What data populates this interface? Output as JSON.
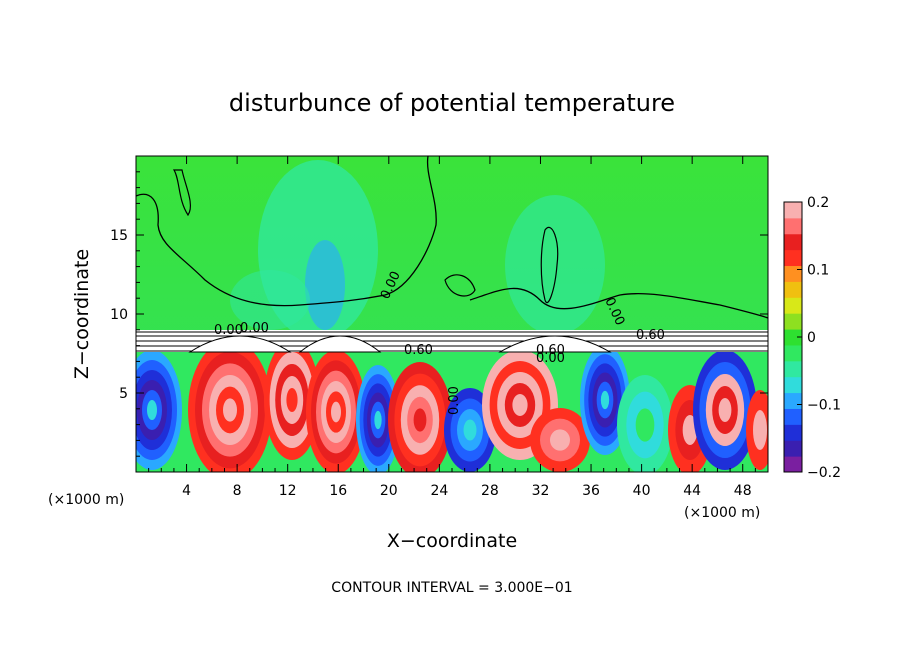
{
  "chart_data": {
    "type": "heatmap",
    "title": "disturbunce of potential temperature",
    "xlabel": "X−coordinate",
    "ylabel": "Z−coordinate",
    "x_unit_left": "(×1000 m)",
    "x_unit_right": "(×1000 m)",
    "footer": "CONTOUR INTERVAL = 3.000E−01",
    "xlim": [
      0,
      50
    ],
    "ylim": [
      0,
      20
    ],
    "x_ticks": [
      4,
      8,
      12,
      16,
      20,
      24,
      28,
      32,
      36,
      40,
      44,
      48
    ],
    "x_tick_labels": [
      "4",
      "8",
      "12",
      "16",
      "20",
      "24",
      "28",
      "32",
      "36",
      "40",
      "44",
      "48"
    ],
    "y_ticks": [
      5,
      10,
      15
    ],
    "y_tick_labels": [
      "5",
      "10",
      "15"
    ],
    "colorbar": {
      "min": -0.2,
      "max": 0.2,
      "tick_values": [
        0.2,
        0.1,
        0,
        -0.1,
        -0.2
      ],
      "tick_labels": [
        "0.2",
        "0.1",
        "0",
        "−0.1",
        "−0.2"
      ],
      "colors": [
        "#7a1fa0",
        "#3a1fb0",
        "#1f2fd8",
        "#2060ff",
        "#2aa8ff",
        "#30dcdc",
        "#30e8a0",
        "#30e860",
        "#2ee030",
        "#8ee020",
        "#d8e818",
        "#f0c010",
        "#ff9020",
        "#ff3020",
        "#e82020",
        "#ff7070",
        "#f8b0b0"
      ]
    },
    "contour_labels": [
      "0.00",
      "0.00",
      "0.00",
      "0.60",
      "0.60",
      "0.60",
      "0.00",
      "0.00",
      "0.00"
    ]
  }
}
